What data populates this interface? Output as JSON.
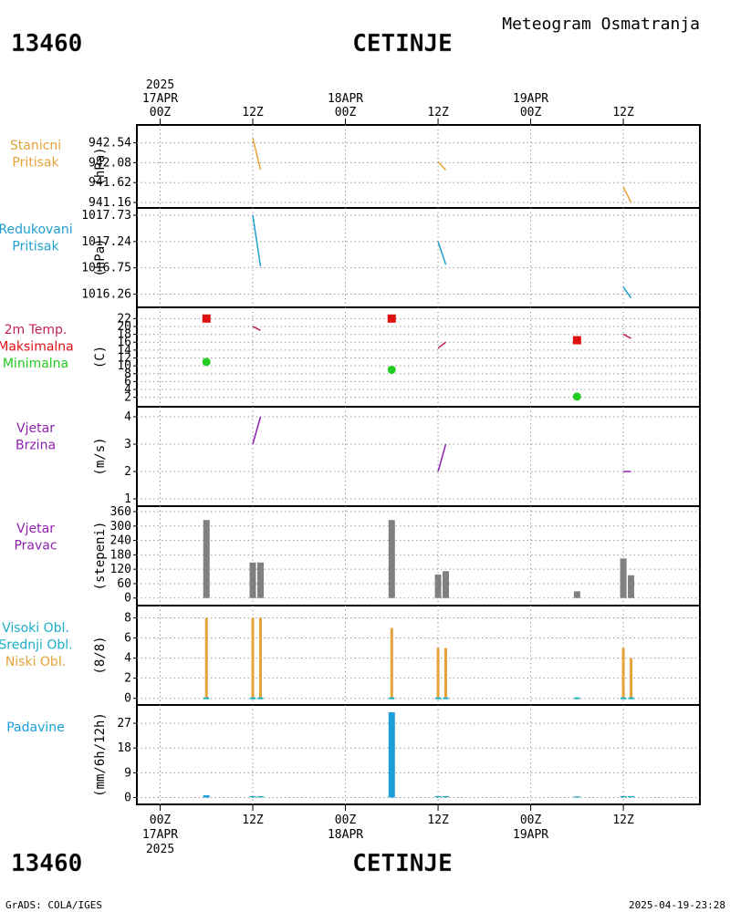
{
  "header": {
    "station_id": "13460",
    "station_name": "CETINJE",
    "product_title": "Meteogram Osmatranja"
  },
  "footer": {
    "credit": "GrADS: COLA/IGES",
    "timestamp": "2025-04-19-23:28"
  },
  "time_axis": {
    "top": [
      {
        "lines": [
          "2025",
          "17APR",
          "00Z"
        ]
      },
      {
        "lines": [
          "12Z"
        ]
      },
      {
        "lines": [
          "18APR",
          "00Z"
        ]
      },
      {
        "lines": [
          "12Z"
        ]
      },
      {
        "lines": [
          "19APR",
          "00Z"
        ]
      },
      {
        "lines": [
          "12Z"
        ]
      }
    ],
    "bottom": [
      {
        "lines": [
          "00Z",
          "17APR",
          "2025"
        ]
      },
      {
        "lines": [
          "12Z"
        ]
      },
      {
        "lines": [
          "00Z",
          "18APR"
        ]
      },
      {
        "lines": [
          "12Z"
        ]
      },
      {
        "lines": [
          "00Z",
          "19APR"
        ]
      },
      {
        "lines": [
          "12Z"
        ]
      }
    ]
  },
  "chart_data": [
    {
      "type": "line",
      "panel": "station-pressure",
      "labels": [
        {
          "text": "Stanicni",
          "color": "#e6a33a"
        },
        {
          "text": "Pritisak",
          "color": "#e6a33a"
        }
      ],
      "ylabel": "(hPa)",
      "yticks": [
        941.16,
        941.62,
        942.08,
        942.54
      ],
      "ylim": [
        941.16,
        942.7
      ],
      "series": [
        {
          "color": "#e6a33a",
          "segments": [
            [
              [
                12,
                942.65
              ],
              [
                13,
                941.92
              ]
            ],
            [
              [
                36,
                942.1
              ],
              [
                37,
                941.91
              ]
            ],
            [
              [
                60,
                941.52
              ],
              [
                61,
                941.16
              ]
            ]
          ]
        }
      ]
    },
    {
      "type": "line",
      "panel": "reduced-pressure",
      "labels": [
        {
          "text": "Redukovani",
          "color": "#1e9fd0"
        },
        {
          "text": "Pritisak",
          "color": "#1e9fd0"
        }
      ],
      "ylabel": "(hPa)",
      "yticks": [
        1016.26,
        1016.75,
        1017.24,
        1017.73
      ],
      "ylim": [
        1016.15,
        1017.73
      ],
      "series": [
        {
          "color": "#1e9fd0",
          "segments": [
            [
              [
                12,
                1017.73
              ],
              [
                13,
                1016.78
              ]
            ],
            [
              [
                36,
                1017.24
              ],
              [
                37,
                1016.81
              ]
            ],
            [
              [
                60,
                1016.39
              ],
              [
                61,
                1016.19
              ]
            ]
          ]
        }
      ]
    },
    {
      "type": "line",
      "panel": "temperature",
      "labels": [
        {
          "text": "2m Temp.",
          "color": "#c0205a"
        },
        {
          "text": "Maksimalna",
          "color": "#e01010"
        },
        {
          "text": "Minimalna",
          "color": "#22cc22"
        }
      ],
      "ylabel": "(C)",
      "yticks": [
        2,
        4,
        6,
        8,
        10,
        12,
        14,
        16,
        18,
        20,
        22
      ],
      "ylim": [
        1,
        23
      ],
      "series": [
        {
          "color": "#c0205a",
          "segments": [
            [
              [
                12,
                20
              ],
              [
                13,
                19
              ]
            ],
            [
              [
                36,
                14.5
              ],
              [
                37,
                16
              ]
            ],
            [
              [
                60,
                18
              ],
              [
                61,
                17
              ]
            ]
          ]
        }
      ],
      "maxima": {
        "color": "#e01010",
        "points": [
          [
            6,
            22
          ],
          [
            30,
            22
          ],
          [
            54,
            16.5
          ]
        ]
      },
      "minima": {
        "color": "#22cc22",
        "points": [
          [
            6,
            11
          ],
          [
            30,
            9
          ],
          [
            54,
            2.2
          ]
        ]
      }
    },
    {
      "type": "line",
      "panel": "wind-speed",
      "labels": [
        {
          "text": "Vjetar",
          "color": "#9020b0"
        },
        {
          "text": "Brzina",
          "color": "#9020b0"
        }
      ],
      "ylabel": "(m/s)",
      "yticks": [
        1,
        2,
        3,
        4
      ],
      "ylim": [
        1,
        4.1
      ],
      "series": [
        {
          "color": "#9020b0",
          "segments": [
            [
              [
                12,
                3
              ],
              [
                13,
                4
              ]
            ],
            [
              [
                36,
                2
              ],
              [
                37,
                3
              ]
            ],
            [
              [
                60,
                2
              ],
              [
                61,
                2
              ]
            ]
          ]
        }
      ]
    },
    {
      "type": "bar",
      "panel": "wind-direction",
      "labels": [
        {
          "text": "Vjetar",
          "color": "#9020b0"
        },
        {
          "text": "Pravac",
          "color": "#9020b0"
        }
      ],
      "ylabel": "(stepeni)",
      "yticks": [
        0,
        60,
        120,
        180,
        240,
        300,
        360
      ],
      "ylim": [
        -20,
        360
      ],
      "bar_color": "#808080",
      "bars": [
        [
          6,
          325
        ],
        [
          12,
          148
        ],
        [
          13,
          148
        ],
        [
          30,
          325
        ],
        [
          36,
          98
        ],
        [
          37,
          112
        ],
        [
          54,
          28
        ],
        [
          60,
          165
        ],
        [
          61,
          95
        ]
      ]
    },
    {
      "type": "bar",
      "panel": "cloud-cover",
      "labels": [
        {
          "text": "Visoki Obl.",
          "color": "#1aaec8"
        },
        {
          "text": "Srednji Obl.",
          "color": "#1aaec8"
        },
        {
          "text": "Niski Obl.",
          "color": "#e6a33a"
        }
      ],
      "ylabel": "(8/8)",
      "yticks": [
        0,
        2,
        4,
        6,
        8
      ],
      "ylim": [
        -0.3,
        8.5
      ],
      "bar_color": "#e6a33a",
      "bars": [
        [
          6,
          8
        ],
        [
          12,
          8
        ],
        [
          13,
          8
        ],
        [
          30,
          7
        ],
        [
          36,
          5
        ],
        [
          37,
          5
        ],
        [
          54,
          0
        ],
        [
          60,
          5
        ],
        [
          61,
          4
        ]
      ]
    },
    {
      "type": "bar",
      "panel": "precipitation",
      "labels": [
        {
          "text": "Padavine",
          "color": "#1a9ed8"
        }
      ],
      "ylabel": "(mm/6h/12h)",
      "yticks": [
        0,
        9,
        18,
        27
      ],
      "ylim": [
        -0.5,
        31
      ],
      "bar_color": "#1a9ed8",
      "bars": [
        [
          6,
          0.8
        ],
        [
          12,
          0.3
        ],
        [
          13,
          0.3
        ],
        [
          30,
          31
        ],
        [
          36,
          0.3
        ],
        [
          37,
          0.3
        ],
        [
          54,
          0.2
        ],
        [
          60,
          0.3
        ],
        [
          61,
          0.3
        ]
      ]
    }
  ]
}
